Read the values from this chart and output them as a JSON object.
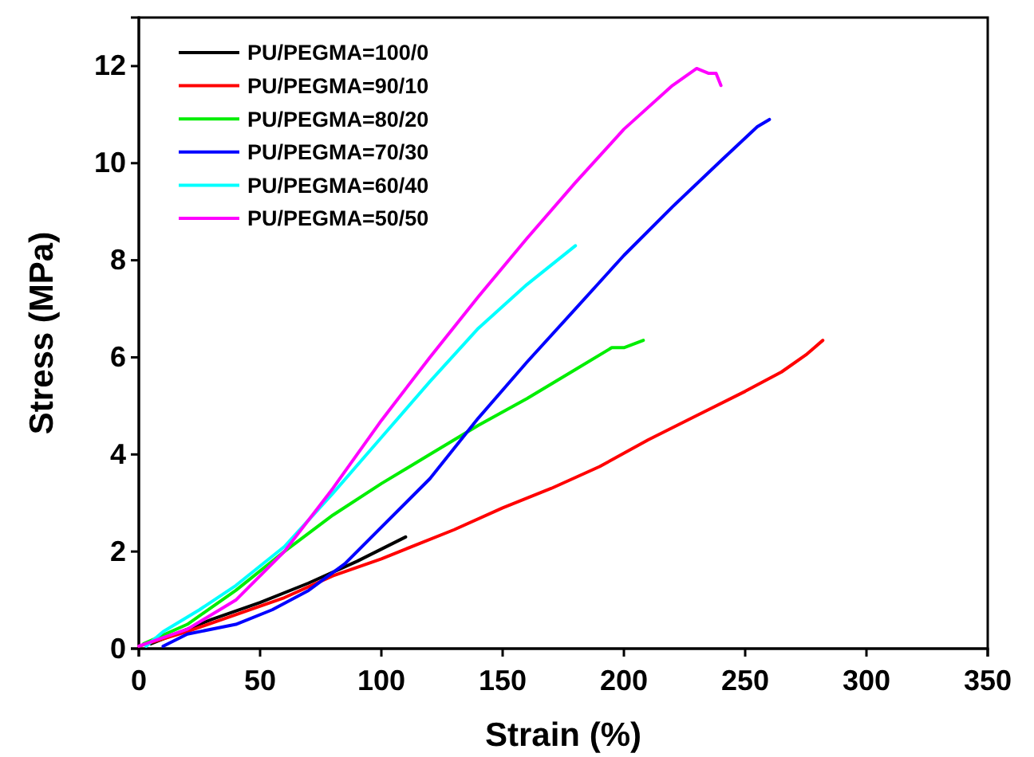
{
  "chart_data": {
    "type": "line",
    "xlabel": "Strain (%)",
    "ylabel": "Stress (MPa)",
    "xlim": [
      0,
      350
    ],
    "xticks": [
      0,
      50,
      100,
      150,
      200,
      250,
      300,
      350
    ],
    "ylim": [
      0,
      13
    ],
    "yticks": [
      0,
      2,
      4,
      6,
      8,
      10,
      12
    ],
    "grid": false,
    "legend": "top left",
    "marker": "none",
    "line_style": "solid",
    "series": [
      {
        "name": "PU/PEGMA=100/0",
        "color": "#000000",
        "x": [
          5,
          30,
          50,
          70,
          90,
          100,
          110
        ],
        "values": [
          0.1,
          0.6,
          0.95,
          1.35,
          1.8,
          2.05,
          2.3
        ]
      },
      {
        "name": "PU/PEGMA=90/10",
        "color": "#ff0000",
        "x": [
          0,
          20,
          40,
          60,
          80,
          100,
          110,
          130,
          150,
          170,
          190,
          210,
          230,
          250,
          265,
          275,
          282
        ],
        "values": [
          0.05,
          0.35,
          0.7,
          1.05,
          1.5,
          1.85,
          2.05,
          2.45,
          2.9,
          3.3,
          3.75,
          4.3,
          4.8,
          5.3,
          5.7,
          6.05,
          6.35
        ]
      },
      {
        "name": "PU/PEGMA=80/20",
        "color": "#00ee00",
        "x": [
          2,
          20,
          40,
          60,
          80,
          100,
          120,
          140,
          160,
          180,
          195,
          200,
          208
        ],
        "values": [
          0.1,
          0.5,
          1.2,
          2.0,
          2.75,
          3.4,
          4.0,
          4.6,
          5.15,
          5.75,
          6.2,
          6.2,
          6.35
        ]
      },
      {
        "name": "PU/PEGMA=70/30",
        "color": "#0000ff",
        "x": [
          10,
          20,
          40,
          55,
          70,
          85,
          100,
          120,
          140,
          160,
          180,
          200,
          220,
          240,
          255,
          260
        ],
        "values": [
          0.05,
          0.3,
          0.5,
          0.8,
          1.2,
          1.75,
          2.5,
          3.5,
          4.75,
          5.9,
          7.0,
          8.1,
          9.1,
          10.05,
          10.75,
          10.9
        ]
      },
      {
        "name": "PU/PEGMA=60/40",
        "color": "#00ffff",
        "x": [
          3,
          10,
          25,
          40,
          60,
          80,
          100,
          120,
          140,
          160,
          180
        ],
        "values": [
          0.05,
          0.35,
          0.8,
          1.3,
          2.1,
          3.2,
          4.35,
          5.5,
          6.6,
          7.5,
          8.3
        ]
      },
      {
        "name": "PU/PEGMA=50/50",
        "color": "#ff00ff",
        "x": [
          0,
          20,
          40,
          60,
          80,
          100,
          120,
          140,
          160,
          180,
          200,
          220,
          230,
          235,
          238,
          240
        ],
        "values": [
          0.05,
          0.4,
          1.0,
          2.0,
          3.3,
          4.7,
          6.0,
          7.25,
          8.45,
          9.6,
          10.7,
          11.6,
          11.95,
          11.85,
          11.85,
          11.6
        ]
      }
    ]
  }
}
